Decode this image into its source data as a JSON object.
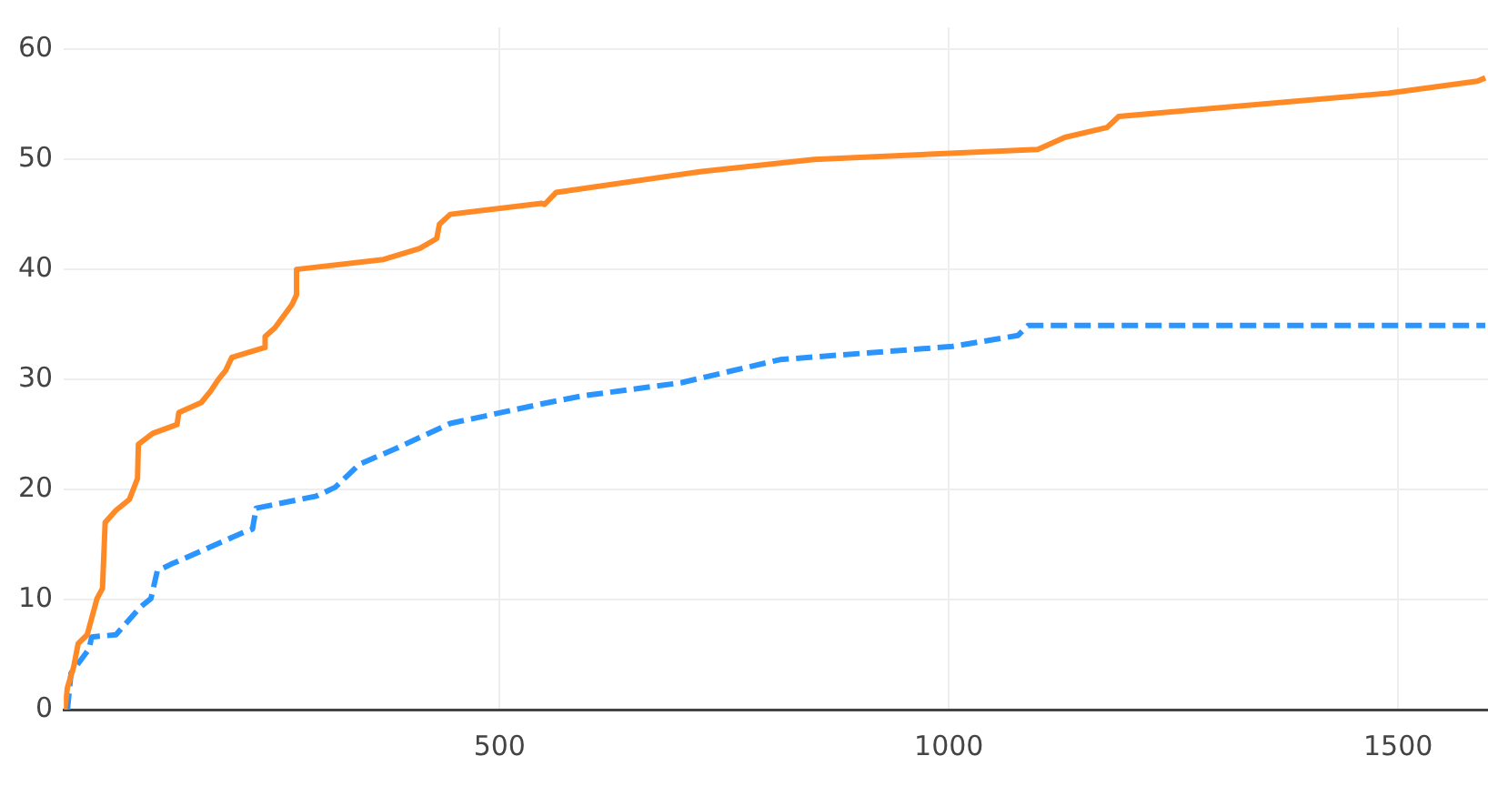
{
  "chart_data": {
    "type": "line",
    "xlim": [
      15,
      1600
    ],
    "ylim": [
      0,
      62
    ],
    "xticks": [
      500,
      1000,
      1500
    ],
    "yticks": [
      0,
      10,
      20,
      30,
      40,
      50,
      60
    ],
    "grid": true,
    "legend": false,
    "marker": "none",
    "series": [
      {
        "color": "#ff8a25",
        "line_style": "solid",
        "x": [
          16,
          19,
          26,
          31,
          41,
          52,
          58,
          61,
          73,
          88,
          97,
          98,
          114,
          141,
          143,
          168,
          178,
          187,
          195,
          202,
          238,
          239,
          250,
          269,
          274,
          274,
          371,
          411,
          430,
          433,
          445,
          547,
          550,
          563,
          725,
          850,
          1099,
          1129,
          1176,
          1189,
          1489,
          1588,
          1597
        ],
        "values": [
          0,
          2,
          3.9,
          6,
          6.8,
          10.1,
          11,
          17,
          18.1,
          19.1,
          21,
          24.1,
          25.1,
          25.9,
          27,
          27.9,
          28.9,
          30,
          30.8,
          32,
          32.9,
          33.9,
          34.7,
          36.8,
          37.7,
          40,
          40.9,
          41.9,
          42.8,
          44.1,
          45,
          46,
          45.9,
          47,
          48.9,
          50,
          50.9,
          52,
          52.9,
          53.9,
          56,
          57.1,
          57.4
        ]
      },
      {
        "color": "#2b95ff",
        "line_style": "dashed",
        "x": [
          19,
          23,
          43,
          46,
          73,
          100,
          112,
          119,
          134,
          215,
          225,
          229,
          296,
          317,
          344,
          384,
          445,
          548,
          592,
          702,
          812,
          1004,
          1077,
          1088,
          1597
        ],
        "values": [
          0,
          3.3,
          5.5,
          6.6,
          6.8,
          9.3,
          10.1,
          12.6,
          13.2,
          16.1,
          16.4,
          18.3,
          19.4,
          20.2,
          22.3,
          23.7,
          26,
          27.8,
          28.5,
          29.7,
          31.8,
          33,
          34,
          34.9,
          34.9
        ]
      }
    ]
  }
}
